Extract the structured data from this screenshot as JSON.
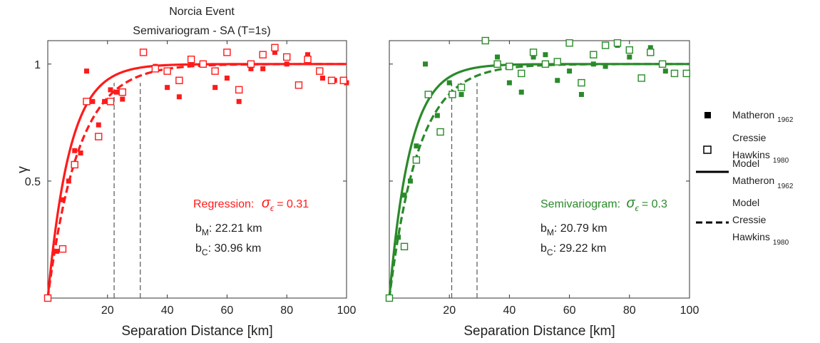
{
  "figure": {
    "title_line1": "Norcia Event",
    "title_line2": "Semivariogram - SA (T=1s)"
  },
  "legend": [
    {
      "label": "Matheron",
      "sub": "1962",
      "kind": "filled-square"
    },
    {
      "label_lines": [
        "Cressie",
        "Hawkins"
      ],
      "sub": "1980",
      "kind": "open-square"
    },
    {
      "label_lines": [
        "Model",
        "Matheron"
      ],
      "sub": "1962",
      "kind": "solid-line"
    },
    {
      "label_lines": [
        "Model",
        "Cressie",
        "Hawkins"
      ],
      "sub": "1980",
      "kind": "dashed-line"
    }
  ],
  "chart_data": [
    {
      "type": "scatter",
      "title": "Norcia Event Semivariogram - SA (T=1s)",
      "xlabel": "Separation Distance [km]",
      "ylabel": "γ",
      "xlim": [
        0,
        100
      ],
      "ylim": [
        0,
        1.1
      ],
      "xticks": [
        20,
        40,
        60,
        80,
        100
      ],
      "yticks": [
        0.5,
        1
      ],
      "color": "#ff1a1a",
      "annotation": {
        "label": "Regression:",
        "sigma_text": "σ",
        "sigma_sub": "ϵ",
        "sigma_value": "= 0.31",
        "bM_label": "b",
        "bM_sub": "M",
        "bM_value": ": 22.21 km",
        "bC_label": "b",
        "bC_sub": "C",
        "bC_value": ": 30.96 km"
      },
      "model_ranges": {
        "matheron_km": 22.21,
        "cressie_hawkins_km": 30.96
      },
      "series": [
        {
          "name": "Matheron 1962",
          "marker": "filled-square",
          "x": [
            0,
            3,
            5,
            7,
            9,
            11,
            13,
            15,
            17,
            19,
            21,
            23,
            25,
            36,
            40,
            44,
            48,
            52,
            56,
            60,
            64,
            68,
            72,
            76,
            80,
            84,
            87,
            92,
            96,
            100
          ],
          "y": [
            0,
            0.2,
            0.42,
            0.5,
            0.63,
            0.62,
            0.97,
            0.84,
            0.74,
            0.84,
            0.89,
            0.88,
            0.85,
            0.99,
            0.9,
            0.86,
            1.0,
            1.0,
            0.9,
            0.94,
            0.84,
            0.98,
            0.98,
            1.05,
            1.0,
            0.91,
            1.04,
            0.94,
            0.93,
            0.92
          ]
        },
        {
          "name": "Cressie Hawkins 1980",
          "marker": "open-square",
          "x": [
            0,
            5,
            9,
            13,
            17,
            21,
            25,
            32,
            36,
            40,
            44,
            48,
            52,
            56,
            60,
            64,
            68,
            72,
            76,
            80,
            84,
            87,
            91,
            95,
            99
          ],
          "y": [
            0,
            0.21,
            0.57,
            0.84,
            0.69,
            0.84,
            0.88,
            1.05,
            0.98,
            0.97,
            0.93,
            1.02,
            1.0,
            0.97,
            1.05,
            0.89,
            1.0,
            1.04,
            1.07,
            1.03,
            0.91,
            1.02,
            0.97,
            0.93,
            0.93
          ]
        },
        {
          "name": "Model Matheron 1962",
          "style": "solid",
          "range_km": 22.21
        },
        {
          "name": "Model Cressie Hawkins 1980",
          "style": "dashed",
          "range_km": 30.96
        }
      ]
    },
    {
      "type": "scatter",
      "title": "",
      "xlabel": "Separation Distance [km]",
      "ylabel": "",
      "xlim": [
        0,
        100
      ],
      "ylim": [
        0,
        1.1
      ],
      "xticks": [
        20,
        40,
        60,
        80,
        100
      ],
      "yticks": [
        0.5,
        1
      ],
      "color": "#2a8a2a",
      "annotation": {
        "label": "Semivariogram:",
        "sigma_text": "σ",
        "sigma_sub": "ϵ",
        "sigma_value": "= 0.3",
        "bM_label": "b",
        "bM_sub": "M",
        "bM_value": ": 20.79 km",
        "bC_label": "b",
        "bC_sub": "C",
        "bC_value": ": 29.22 km"
      },
      "model_ranges": {
        "matheron_km": 20.79,
        "cressie_hawkins_km": 29.22
      },
      "series": [
        {
          "name": "Matheron 1962",
          "marker": "filled-square",
          "x": [
            0,
            3,
            5,
            7,
            9,
            12,
            16,
            20,
            24,
            36,
            40,
            44,
            48,
            52,
            56,
            60,
            64,
            68,
            72,
            76,
            80,
            84,
            87,
            92
          ],
          "y": [
            0,
            0.26,
            0.44,
            0.5,
            0.65,
            1.0,
            0.78,
            0.92,
            0.87,
            1.03,
            0.92,
            0.88,
            1.03,
            1.04,
            0.93,
            0.97,
            0.87,
            1.0,
            0.99,
            1.08,
            1.03,
            0.94,
            1.07,
            0.97
          ]
        },
        {
          "name": "Cressie Hawkins 1980",
          "marker": "open-square",
          "x": [
            0,
            5,
            9,
            13,
            17,
            21,
            24,
            32,
            36,
            40,
            44,
            48,
            52,
            56,
            60,
            64,
            68,
            72,
            76,
            80,
            84,
            87,
            91,
            95,
            99
          ],
          "y": [
            0,
            0.22,
            0.59,
            0.87,
            0.71,
            0.87,
            0.9,
            1.1,
            1.0,
            0.99,
            0.96,
            1.05,
            1.0,
            1.01,
            1.09,
            0.92,
            1.04,
            1.08,
            1.09,
            1.06,
            0.94,
            1.05,
            1.0,
            0.96,
            0.96
          ]
        },
        {
          "name": "Model Matheron 1962",
          "style": "solid",
          "range_km": 20.79
        },
        {
          "name": "Model Cressie Hawkins 1980",
          "style": "dashed",
          "range_km": 29.22
        }
      ]
    }
  ]
}
